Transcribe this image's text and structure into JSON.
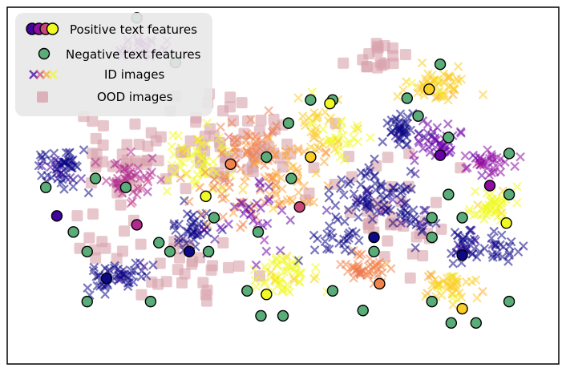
{
  "chart_data": {
    "type": "scatter",
    "title": "",
    "xlabel": "",
    "ylabel": "",
    "xlim": [
      0,
      100
    ],
    "ylim": [
      0,
      100
    ],
    "axes_ticks": false,
    "grid": false,
    "legend": {
      "placement": "top-left",
      "entries": [
        {
          "label": "Positive text features",
          "marker": "circle-palette"
        },
        {
          "label": "Negative text features",
          "marker": "circle-green"
        },
        {
          "label": "ID images",
          "marker": "x-palette"
        },
        {
          "label": "OOD images",
          "marker": "square-pink"
        }
      ]
    },
    "colors": {
      "negative": "#5aad78",
      "ood": "#d9a3ac",
      "palette": [
        "#0d0887",
        "#41049d",
        "#6a00a8",
        "#8f0da4",
        "#b12a90",
        "#cc4778",
        "#e16462",
        "#f2844b",
        "#fca636",
        "#fcce25",
        "#f0f921"
      ]
    },
    "id_clusters": [
      {
        "x": 9.5,
        "y": 55.5,
        "sx": 2.0,
        "sy": 3.0,
        "n": 55,
        "c": 0
      },
      {
        "x": 22.0,
        "y": 51.5,
        "sx": 2.3,
        "sy": 3.0,
        "n": 45,
        "c": 4
      },
      {
        "x": 34.0,
        "y": 37.0,
        "sx": 2.2,
        "sy": 3.0,
        "n": 40,
        "c": 0
      },
      {
        "x": 20.5,
        "y": 24.5,
        "sx": 2.6,
        "sy": 2.5,
        "n": 50,
        "c": 0
      },
      {
        "x": 35.0,
        "y": 57.0,
        "sx": 3.0,
        "sy": 4.5,
        "n": 55,
        "c": 10
      },
      {
        "x": 44.0,
        "y": 61.0,
        "sx": 2.6,
        "sy": 4.0,
        "n": 45,
        "c": 7
      },
      {
        "x": 50.0,
        "y": 52.0,
        "sx": 3.5,
        "sy": 6.0,
        "n": 55,
        "c": 8
      },
      {
        "x": 56.0,
        "y": 66.0,
        "sx": 1.6,
        "sy": 4.0,
        "n": 30,
        "c": 9
      },
      {
        "x": 60.0,
        "y": 62.0,
        "sx": 2.0,
        "sy": 3.0,
        "n": 25,
        "c": 10
      },
      {
        "x": 66.0,
        "y": 47.0,
        "sx": 3.5,
        "sy": 4.5,
        "n": 70,
        "c": 0
      },
      {
        "x": 72.0,
        "y": 65.0,
        "sx": 1.8,
        "sy": 2.5,
        "n": 40,
        "c": 0
      },
      {
        "x": 77.5,
        "y": 78.5,
        "sx": 2.8,
        "sy": 2.2,
        "n": 55,
        "c": 9
      },
      {
        "x": 78.0,
        "y": 62.0,
        "sx": 2.0,
        "sy": 2.5,
        "n": 40,
        "c": 2
      },
      {
        "x": 73.0,
        "y": 42.0,
        "sx": 1.8,
        "sy": 3.0,
        "n": 30,
        "c": 0
      },
      {
        "x": 49.5,
        "y": 25.0,
        "sx": 3.0,
        "sy": 3.0,
        "n": 55,
        "c": 10
      },
      {
        "x": 65.5,
        "y": 27.0,
        "sx": 2.2,
        "sy": 2.0,
        "n": 45,
        "c": 7
      },
      {
        "x": 80.0,
        "y": 21.5,
        "sx": 2.5,
        "sy": 2.0,
        "n": 45,
        "c": 9
      },
      {
        "x": 83.5,
        "y": 33.5,
        "sx": 1.8,
        "sy": 2.5,
        "n": 35,
        "c": 0
      },
      {
        "x": 87.5,
        "y": 44.0,
        "sx": 2.5,
        "sy": 2.5,
        "n": 45,
        "c": 10
      },
      {
        "x": 86.5,
        "y": 57.0,
        "sx": 2.0,
        "sy": 2.0,
        "n": 35,
        "c": 3
      },
      {
        "x": 90.0,
        "y": 32.5,
        "sx": 1.4,
        "sy": 2.0,
        "n": 20,
        "c": 0
      },
      {
        "x": 40.0,
        "y": 48.0,
        "sx": 4.0,
        "sy": 6.0,
        "n": 35,
        "c": 7
      },
      {
        "x": 44.0,
        "y": 41.0,
        "sx": 4.0,
        "sy": 5.0,
        "n": 30,
        "c": 2
      },
      {
        "x": 24.0,
        "y": 88.5,
        "sx": 2.0,
        "sy": 1.6,
        "n": 30,
        "c": 3
      },
      {
        "x": 60.0,
        "y": 36.0,
        "sx": 2.5,
        "sy": 4.0,
        "n": 25,
        "c": 0
      }
    ],
    "ood_clusters": [
      {
        "x": 22.0,
        "y": 58.0,
        "sx": 5.5,
        "sy": 7.0,
        "n": 40
      },
      {
        "x": 39.0,
        "y": 62.0,
        "sx": 6.0,
        "sy": 7.0,
        "n": 40
      },
      {
        "x": 34.0,
        "y": 28.0,
        "sx": 5.0,
        "sy": 4.0,
        "n": 28
      },
      {
        "x": 67.0,
        "y": 86.0,
        "sx": 2.5,
        "sy": 2.0,
        "n": 18
      },
      {
        "x": 66.0,
        "y": 46.0,
        "sx": 5.5,
        "sy": 7.0,
        "n": 25
      },
      {
        "x": 73.0,
        "y": 34.0,
        "sx": 3.0,
        "sy": 4.0,
        "n": 12
      },
      {
        "x": 52.0,
        "y": 60.0,
        "sx": 6.0,
        "sy": 6.0,
        "n": 14
      },
      {
        "x": 18.0,
        "y": 38.0,
        "sx": 5.0,
        "sy": 6.0,
        "n": 14
      }
    ],
    "positive_points": [
      {
        "x": 9.0,
        "y": 41.5,
        "c": 1
      },
      {
        "x": 23.5,
        "y": 39.0,
        "c": 4
      },
      {
        "x": 33.0,
        "y": 31.5,
        "c": 0
      },
      {
        "x": 18.0,
        "y": 24.0,
        "c": 0
      },
      {
        "x": 40.5,
        "y": 56.0,
        "c": 7
      },
      {
        "x": 36.0,
        "y": 47.0,
        "c": 10
      },
      {
        "x": 53.0,
        "y": 44.0,
        "c": 5
      },
      {
        "x": 55.0,
        "y": 58.0,
        "c": 9
      },
      {
        "x": 58.5,
        "y": 73.0,
        "c": 10
      },
      {
        "x": 76.5,
        "y": 77.0,
        "c": 9
      },
      {
        "x": 78.5,
        "y": 58.5,
        "c": 2
      },
      {
        "x": 87.5,
        "y": 50.0,
        "c": 3
      },
      {
        "x": 66.5,
        "y": 35.5,
        "c": 0
      },
      {
        "x": 82.5,
        "y": 30.5,
        "c": 0
      },
      {
        "x": 90.5,
        "y": 39.5,
        "c": 10
      },
      {
        "x": 47.0,
        "y": 19.5,
        "c": 10
      },
      {
        "x": 67.5,
        "y": 22.5,
        "c": 7
      },
      {
        "x": 82.5,
        "y": 15.5,
        "c": 9
      }
    ],
    "negative_points": [
      {
        "x": 23.5,
        "y": 97.0
      },
      {
        "x": 30.5,
        "y": 84.5
      },
      {
        "x": 78.5,
        "y": 84.0
      },
      {
        "x": 55.0,
        "y": 74.0
      },
      {
        "x": 59.0,
        "y": 74.0
      },
      {
        "x": 72.5,
        "y": 74.5
      },
      {
        "x": 74.5,
        "y": 69.5
      },
      {
        "x": 51.0,
        "y": 67.5
      },
      {
        "x": 80.0,
        "y": 63.5
      },
      {
        "x": 47.0,
        "y": 58.0
      },
      {
        "x": 91.0,
        "y": 59.0
      },
      {
        "x": 7.0,
        "y": 49.5
      },
      {
        "x": 16.0,
        "y": 52.0
      },
      {
        "x": 21.5,
        "y": 49.5
      },
      {
        "x": 51.5,
        "y": 52.0
      },
      {
        "x": 80.0,
        "y": 47.5
      },
      {
        "x": 91.0,
        "y": 47.5
      },
      {
        "x": 37.5,
        "y": 41.0
      },
      {
        "x": 77.0,
        "y": 41.0
      },
      {
        "x": 82.5,
        "y": 41.0
      },
      {
        "x": 12.0,
        "y": 37.0
      },
      {
        "x": 45.5,
        "y": 37.0
      },
      {
        "x": 77.0,
        "y": 35.5
      },
      {
        "x": 27.5,
        "y": 34.0
      },
      {
        "x": 14.5,
        "y": 31.5
      },
      {
        "x": 29.5,
        "y": 31.5
      },
      {
        "x": 36.5,
        "y": 31.5
      },
      {
        "x": 66.5,
        "y": 31.5
      },
      {
        "x": 43.5,
        "y": 20.5
      },
      {
        "x": 59.0,
        "y": 20.5
      },
      {
        "x": 14.5,
        "y": 17.5
      },
      {
        "x": 26.0,
        "y": 17.5
      },
      {
        "x": 77.0,
        "y": 17.5
      },
      {
        "x": 91.0,
        "y": 17.5
      },
      {
        "x": 64.5,
        "y": 15.0
      },
      {
        "x": 46.0,
        "y": 13.5
      },
      {
        "x": 50.0,
        "y": 13.5
      },
      {
        "x": 80.5,
        "y": 11.5
      },
      {
        "x": 85.0,
        "y": 11.5
      }
    ]
  }
}
